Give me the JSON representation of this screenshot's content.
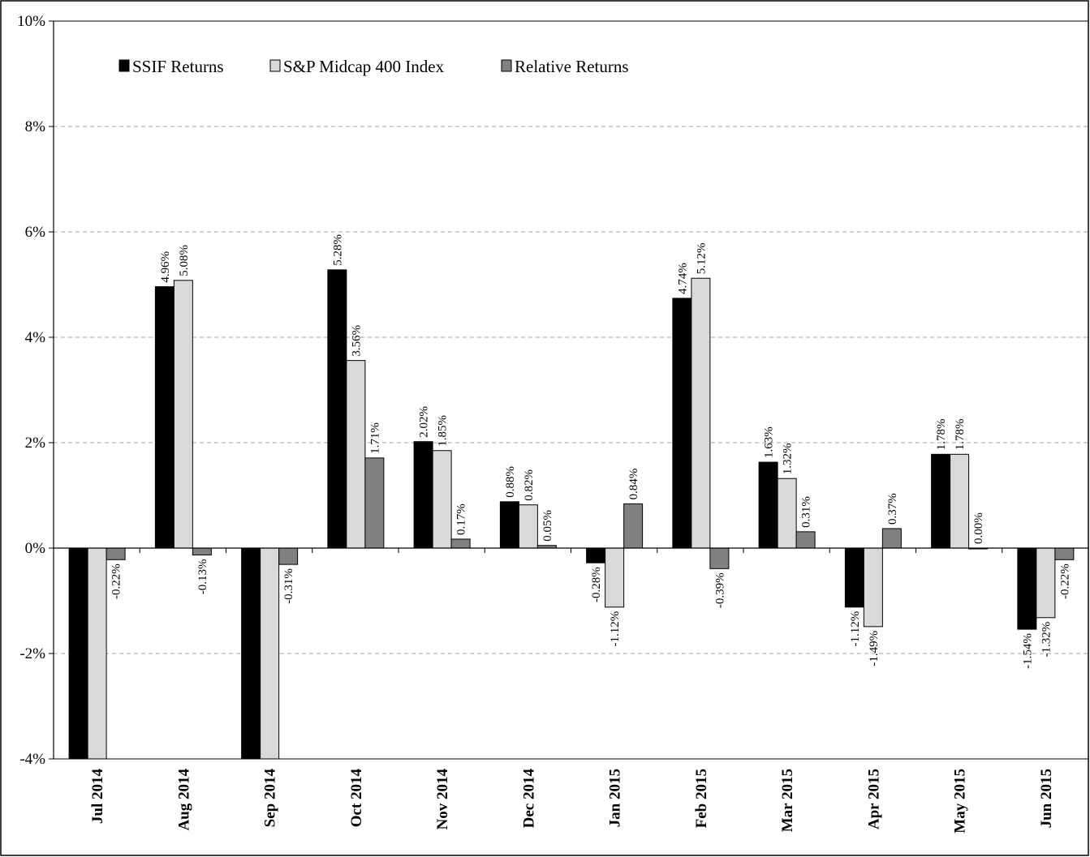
{
  "chart_data": {
    "type": "bar",
    "title": "",
    "xlabel": "",
    "ylabel": "",
    "ylim": [
      -4,
      10
    ],
    "y_ticks": [
      -4,
      -2,
      0,
      2,
      4,
      6,
      8,
      10
    ],
    "y_tick_labels": [
      "-4%",
      "-2%",
      "0%",
      "2%",
      "4%",
      "6%",
      "8%",
      "10%"
    ],
    "grid": true,
    "legend_position": "top-left",
    "categories": [
      "Jul 2014",
      "Aug 2014",
      "Sep 2014",
      "Oct 2014",
      "Nov 2014",
      "Dec 2014",
      "Jan 2015",
      "Feb 2015",
      "Mar 2015",
      "Apr 2015",
      "May 2015",
      "Jun 2015"
    ],
    "series": [
      {
        "name": "SSIF Returns",
        "color": "#000000",
        "values": [
          -4.5,
          4.96,
          -4.5,
          5.28,
          2.02,
          0.88,
          -0.28,
          4.74,
          1.63,
          -1.12,
          1.78,
          -1.54
        ],
        "labels": [
          "",
          "4.96%",
          "",
          "5.28%",
          "2.02%",
          "0.88%",
          "-0.28%",
          "4.74%",
          "1.63%",
          "-1.12%",
          "1.78%",
          "-1.54%"
        ]
      },
      {
        "name": "S&P Midcap 400 Index",
        "color": "#d9d9d9",
        "values": [
          -4.5,
          5.08,
          -4.5,
          3.56,
          1.85,
          0.82,
          -1.12,
          5.12,
          1.32,
          -1.49,
          1.78,
          -1.32
        ],
        "labels": [
          "",
          "5.08%",
          "",
          "3.56%",
          "1.85%",
          "0.82%",
          "-1.12%",
          "5.12%",
          "1.32%",
          "-1.49%",
          "1.78%",
          "-1.32%"
        ]
      },
      {
        "name": "Relative Returns",
        "color": "#808080",
        "values": [
          -0.22,
          -0.13,
          -0.31,
          1.71,
          0.17,
          0.05,
          0.84,
          -0.39,
          0.31,
          0.37,
          0.0,
          -0.22
        ],
        "labels": [
          "-0.22%",
          "-0.13%",
          "-0.31%",
          "1.71%",
          "0.17%",
          "0.05%",
          "0.84%",
          "-0.39%",
          "0.31%",
          "0.37%",
          "0.00%",
          "-0.22%"
        ]
      }
    ]
  }
}
